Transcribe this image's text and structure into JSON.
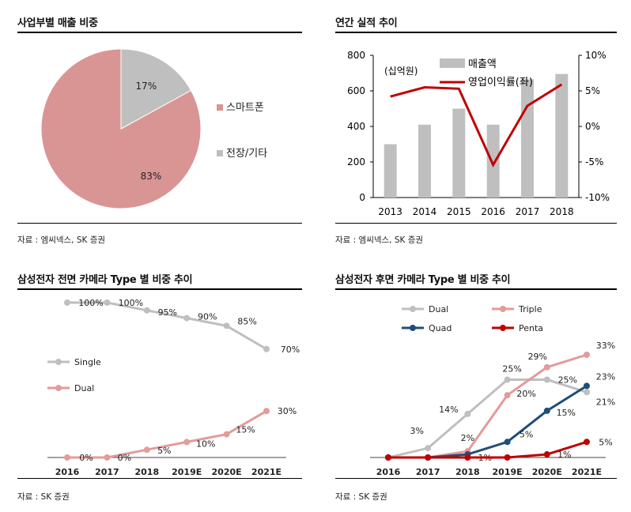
{
  "panels": {
    "tl": {
      "title": "사업부별 매출 비중",
      "source": "자료 : 엠씨넥스, SK 증권"
    },
    "tr": {
      "title": "연간 실적 추이",
      "source": "자료 : 엠씨넥스, SK 증권"
    },
    "bl": {
      "title": "삼성전자 전면 카메라 Type 별 비중 추이",
      "source": "자료 : SK 증권"
    },
    "br": {
      "title": "삼성전자 후면 카메라 Type 별 비중 추이",
      "source": "자료 : SK 증권"
    }
  },
  "chart_data": [
    {
      "type": "pie",
      "title": "사업부별 매출 비중",
      "slices": [
        {
          "name": "스마트폰",
          "value": 83,
          "label": "83%",
          "color": "#d99594"
        },
        {
          "name": "전장/기타",
          "value": 17,
          "label": "17%",
          "color": "#bfbfbf"
        }
      ],
      "legend": "right"
    },
    {
      "type": "bar",
      "title": "연간 실적 추이",
      "categories": [
        "2013",
        "2014",
        "2015",
        "2016",
        "2017",
        "2018"
      ],
      "unit_label": "(십억원)",
      "yticks": [
        "800",
        "600",
        "400",
        "200",
        "0"
      ],
      "ylim": [
        0,
        800
      ],
      "y2ticks": [
        "10%",
        "5%",
        "0%",
        "-5%",
        "-10%"
      ],
      "y2lim": [
        -10,
        10
      ],
      "series": [
        {
          "name": "매출액",
          "kind": "bar",
          "axis": "left",
          "color": "#bfbfbf",
          "values": [
            300,
            410,
            500,
            410,
            665,
            695
          ]
        },
        {
          "name": "영업이익률(좌)",
          "kind": "line",
          "axis": "right",
          "color": "#c00000",
          "values": [
            4.2,
            5.5,
            5.3,
            -5.4,
            2.9,
            5.9
          ]
        }
      ],
      "legend": "top"
    },
    {
      "type": "line",
      "title": "삼성전자 전면 카메라 Type 별 비중 추이",
      "categories": [
        "2016",
        "2017",
        "2018",
        "2019E",
        "2020E",
        "2021E"
      ],
      "ylim": [
        0,
        100
      ],
      "series": [
        {
          "name": "Single",
          "color": "#bfbfbf",
          "values": [
            100,
            100,
            95,
            90,
            85,
            70
          ],
          "labels": [
            "100%",
            "100%",
            "95%",
            "90%",
            "85%",
            "70%"
          ]
        },
        {
          "name": "Dual",
          "color": "#e39b9b",
          "values": [
            0,
            0,
            5,
            10,
            15,
            30
          ],
          "labels": [
            "0%",
            "0%",
            "5%",
            "10%",
            "15%",
            "30%"
          ]
        }
      ],
      "legend": "left"
    },
    {
      "type": "line",
      "title": "삼성전자 후면 카메라 Type 별 비중 추이",
      "categories": [
        "2016",
        "2017",
        "2018",
        "2019E",
        "2020E",
        "2021E"
      ],
      "ylim": [
        0,
        33
      ],
      "series": [
        {
          "name": "Dual",
          "color": "#bfbfbf",
          "values": [
            0,
            3,
            14,
            25,
            25,
            21
          ],
          "labels": [
            "",
            "3%",
            "14%",
            "25%",
            "25%",
            "21%"
          ]
        },
        {
          "name": "Triple",
          "color": "#e39b9b",
          "values": [
            0,
            0,
            2,
            20,
            29,
            33
          ],
          "labels": [
            "",
            "",
            "2%",
            "20%",
            "29%",
            "33%"
          ]
        },
        {
          "name": "Quad",
          "color": "#1f4e79",
          "values": [
            0,
            0,
            1,
            5,
            15,
            23
          ],
          "labels": [
            "",
            "",
            "1%",
            "5%",
            "15%",
            "23%"
          ]
        },
        {
          "name": "Penta",
          "color": "#c00000",
          "values": [
            0,
            0,
            0,
            0,
            1,
            5
          ],
          "labels": [
            "",
            "",
            "",
            "",
            "1%",
            "5%"
          ]
        }
      ],
      "legend": "top"
    }
  ]
}
